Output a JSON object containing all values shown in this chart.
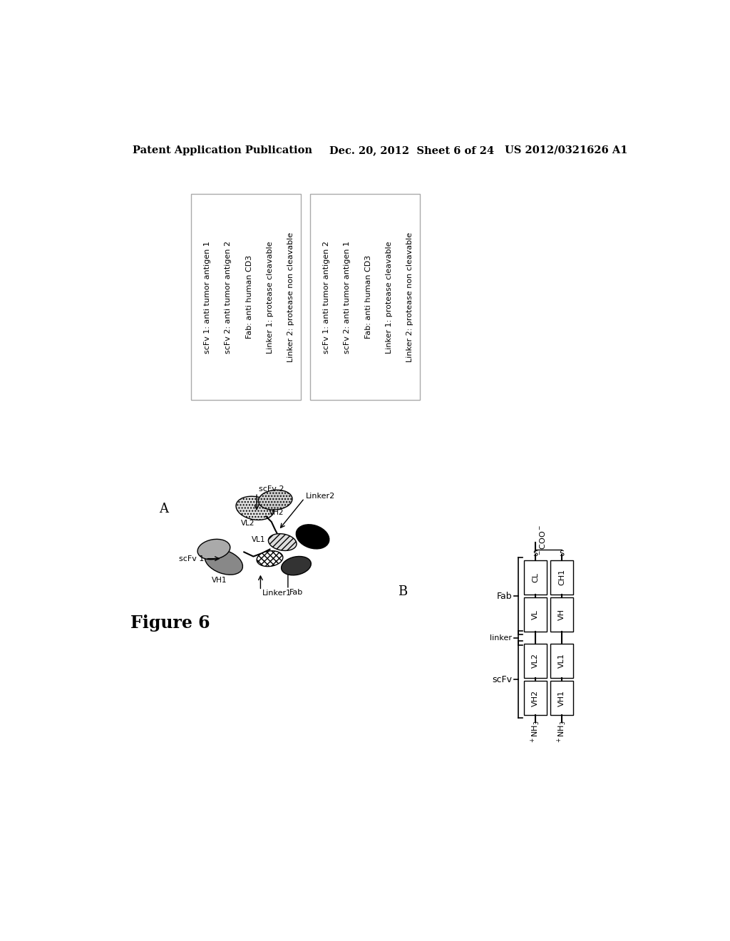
{
  "header_left": "Patent Application Publication",
  "header_center": "Dec. 20, 2012  Sheet 6 of 24",
  "header_right": "US 2012/0321626 A1",
  "figure_label": "Figure 6",
  "panel_a_label": "A",
  "panel_b_label": "B",
  "box1_lines": [
    "scFv 1: anti tumor antigen 1",
    "scFv 2: anti tumor antigen 2",
    "Fab: anti human CD3",
    "Linker 1: protease cleavable",
    "Linker 2: protease non cleavable"
  ],
  "box2_lines": [
    "scFv 1: anti tumor antigen 2",
    "scFv 2: anti tumor antigen 1",
    "Fab: anti human CD3",
    "Linker 1: protease cleavable",
    "Linker 2: protease non cleavable"
  ],
  "bg_color": "#ffffff",
  "text_color": "#000000"
}
